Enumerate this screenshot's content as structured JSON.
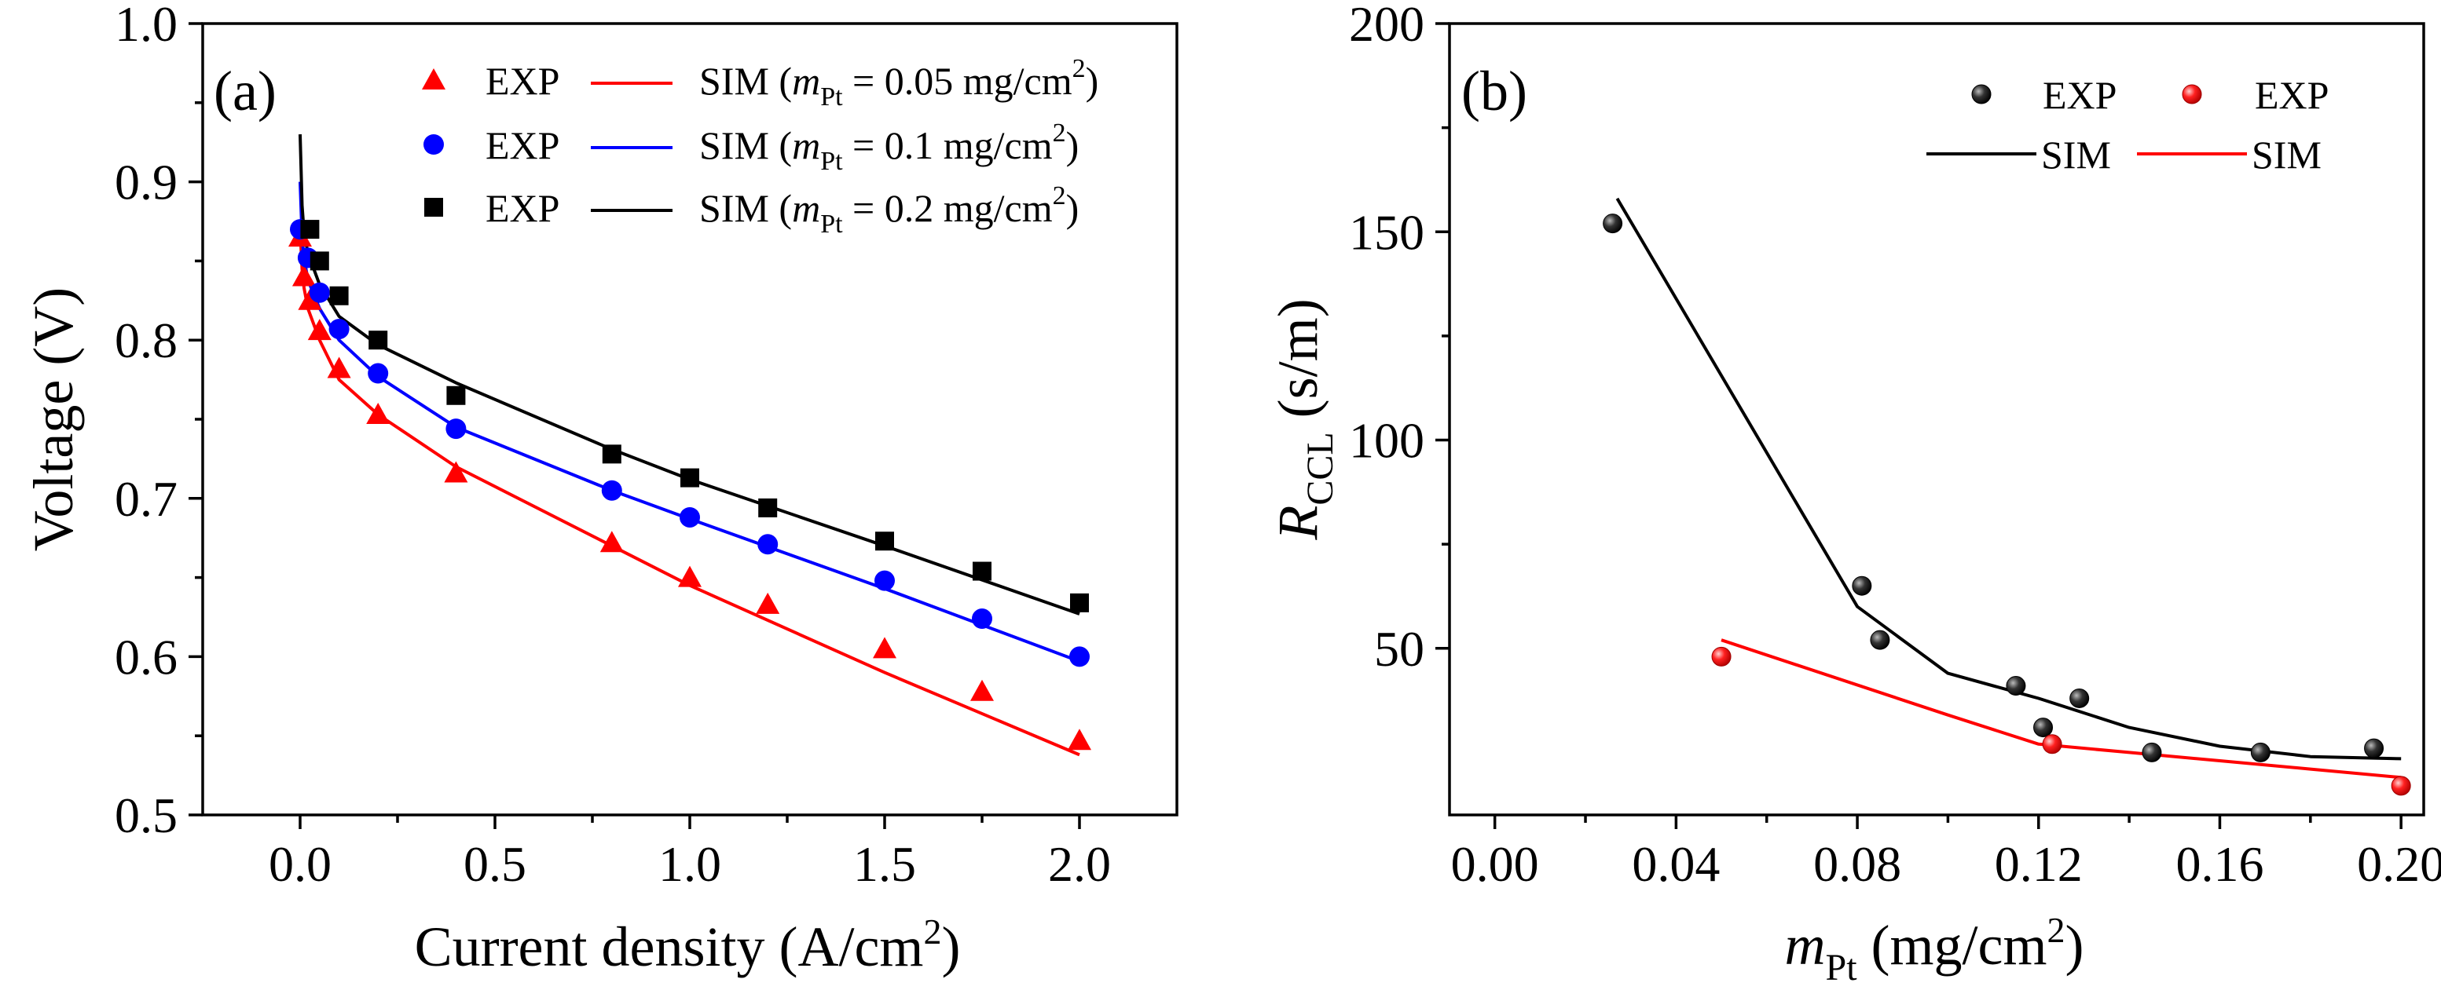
{
  "chart_data": [
    {
      "type": "line",
      "panel_label": "(a)",
      "xlabel": "Current density (A/cm²)",
      "ylabel": "Voltage (V)",
      "xlim": [
        -0.25,
        2.25
      ],
      "ylim": [
        0.5,
        1.0
      ],
      "xticks": [
        0.0,
        0.5,
        1.0,
        1.5,
        2.0
      ],
      "xtick_labels": [
        "0.0",
        "0.5",
        "1.0",
        "1.5",
        "2.0"
      ],
      "yticks": [
        0.5,
        0.6,
        0.7,
        0.8,
        0.9,
        1.0
      ],
      "ytick_labels": [
        "0.5",
        "0.6",
        "0.7",
        "0.8",
        "0.9",
        "1.0"
      ],
      "legend_position": "top-right",
      "series": [
        {
          "name": "EXP",
          "kind": "scatter",
          "marker": "triangle",
          "color": "#ff0000",
          "x": [
            0.0,
            0.01,
            0.025,
            0.05,
            0.1,
            0.2,
            0.4,
            0.8,
            1.0,
            1.2,
            1.5,
            1.75,
            2.0
          ],
          "y": [
            0.865,
            0.84,
            0.825,
            0.806,
            0.782,
            0.753,
            0.716,
            0.672,
            0.65,
            0.633,
            0.605,
            0.578,
            0.547
          ]
        },
        {
          "name": "SIM",
          "legend_label": "SIM (",
          "legend_math": "m",
          "legend_sub": "Pt",
          "legend_tail": " = 0.05 mg/cm",
          "legend_sup": "2",
          "legend_close": ")",
          "kind": "line",
          "color": "#ff0000",
          "x": [
            0.0,
            0.005,
            0.01,
            0.02,
            0.05,
            0.1,
            0.2,
            0.4,
            0.8,
            1.0,
            1.5,
            2.0
          ],
          "y": [
            0.87,
            0.845,
            0.833,
            0.82,
            0.8,
            0.775,
            0.753,
            0.72,
            0.67,
            0.645,
            0.59,
            0.538
          ]
        },
        {
          "name": "EXP",
          "kind": "scatter",
          "marker": "circle",
          "color": "#0000ff",
          "x": [
            0.0,
            0.02,
            0.05,
            0.1,
            0.2,
            0.4,
            0.8,
            1.0,
            1.2,
            1.5,
            1.75,
            2.0
          ],
          "y": [
            0.87,
            0.852,
            0.83,
            0.807,
            0.779,
            0.744,
            0.705,
            0.688,
            0.671,
            0.648,
            0.624,
            0.6
          ]
        },
        {
          "name": "SIM",
          "legend_label": "SIM (",
          "legend_math": "m",
          "legend_sub": "Pt",
          "legend_tail": " = 0.1 mg/cm",
          "legend_sup": "2",
          "legend_close": ")",
          "kind": "line",
          "color": "#0000ff",
          "x": [
            0.0,
            0.005,
            0.01,
            0.02,
            0.05,
            0.1,
            0.2,
            0.4,
            0.8,
            1.0,
            1.5,
            2.0
          ],
          "y": [
            0.9,
            0.865,
            0.852,
            0.838,
            0.82,
            0.8,
            0.777,
            0.745,
            0.705,
            0.687,
            0.643,
            0.597
          ]
        },
        {
          "name": "EXP",
          "kind": "scatter",
          "marker": "square",
          "color": "#000000",
          "x": [
            0.025,
            0.05,
            0.1,
            0.2,
            0.4,
            0.8,
            1.0,
            1.2,
            1.5,
            1.75,
            2.0
          ],
          "y": [
            0.87,
            0.85,
            0.828,
            0.8,
            0.765,
            0.728,
            0.713,
            0.694,
            0.673,
            0.654,
            0.634
          ]
        },
        {
          "name": "SIM",
          "legend_label": "SIM (",
          "legend_math": "m",
          "legend_sub": "Pt",
          "legend_tail": " = 0.2 mg/cm",
          "legend_sup": "2",
          "legend_close": ")",
          "kind": "line",
          "color": "#000000",
          "x": [
            0.0,
            0.005,
            0.01,
            0.02,
            0.05,
            0.1,
            0.2,
            0.4,
            0.8,
            1.0,
            1.5,
            2.0
          ],
          "y": [
            0.93,
            0.885,
            0.868,
            0.855,
            0.835,
            0.815,
            0.797,
            0.773,
            0.731,
            0.712,
            0.67,
            0.627
          ]
        }
      ]
    },
    {
      "type": "line",
      "panel_label": "(b)",
      "xlabel_math": "m",
      "xlabel_sub": "Pt",
      "xlabel_tail": " (mg/cm",
      "xlabel_sup": "2",
      "xlabel_close": ")",
      "ylabel_math": "R",
      "ylabel_sub": "CCL",
      "ylabel_tail": " (s/m)",
      "xlim": [
        -0.01,
        0.205
      ],
      "ylim": [
        10,
        200
      ],
      "xticks": [
        0.0,
        0.04,
        0.08,
        0.12,
        0.16,
        0.2
      ],
      "xtick_labels": [
        "0.00",
        "0.04",
        "0.08",
        "0.12",
        "0.16",
        "0.20"
      ],
      "yticks": [
        50,
        100,
        150,
        200
      ],
      "ytick_labels": [
        "50",
        "100",
        "150",
        "200"
      ],
      "legend_position": "top-right",
      "series": [
        {
          "name": "EXP",
          "kind": "scatter",
          "marker": "sphere",
          "color": "#000000",
          "x": [
            0.026,
            0.081,
            0.085,
            0.115,
            0.121,
            0.129,
            0.145,
            0.169,
            0.194
          ],
          "y": [
            152,
            65,
            52,
            41,
            31,
            38,
            25,
            25,
            26
          ]
        },
        {
          "name": "EXP",
          "kind": "scatter",
          "marker": "sphere",
          "color": "#ff2020",
          "x": [
            0.05,
            0.123,
            0.2
          ],
          "y": [
            48,
            27,
            17
          ]
        },
        {
          "name": "SIM",
          "kind": "line",
          "color": "#000000",
          "x": [
            0.027,
            0.08,
            0.1,
            0.12,
            0.14,
            0.16,
            0.18,
            0.2
          ],
          "y": [
            158,
            60,
            44,
            38,
            31,
            26.5,
            24,
            23.5
          ]
        },
        {
          "name": "SIM",
          "kind": "line",
          "color": "#ff0000",
          "x": [
            0.05,
            0.1,
            0.12,
            0.14,
            0.16,
            0.18,
            0.2
          ],
          "y": [
            52,
            34,
            27,
            25,
            23,
            21,
            19
          ]
        }
      ]
    }
  ]
}
